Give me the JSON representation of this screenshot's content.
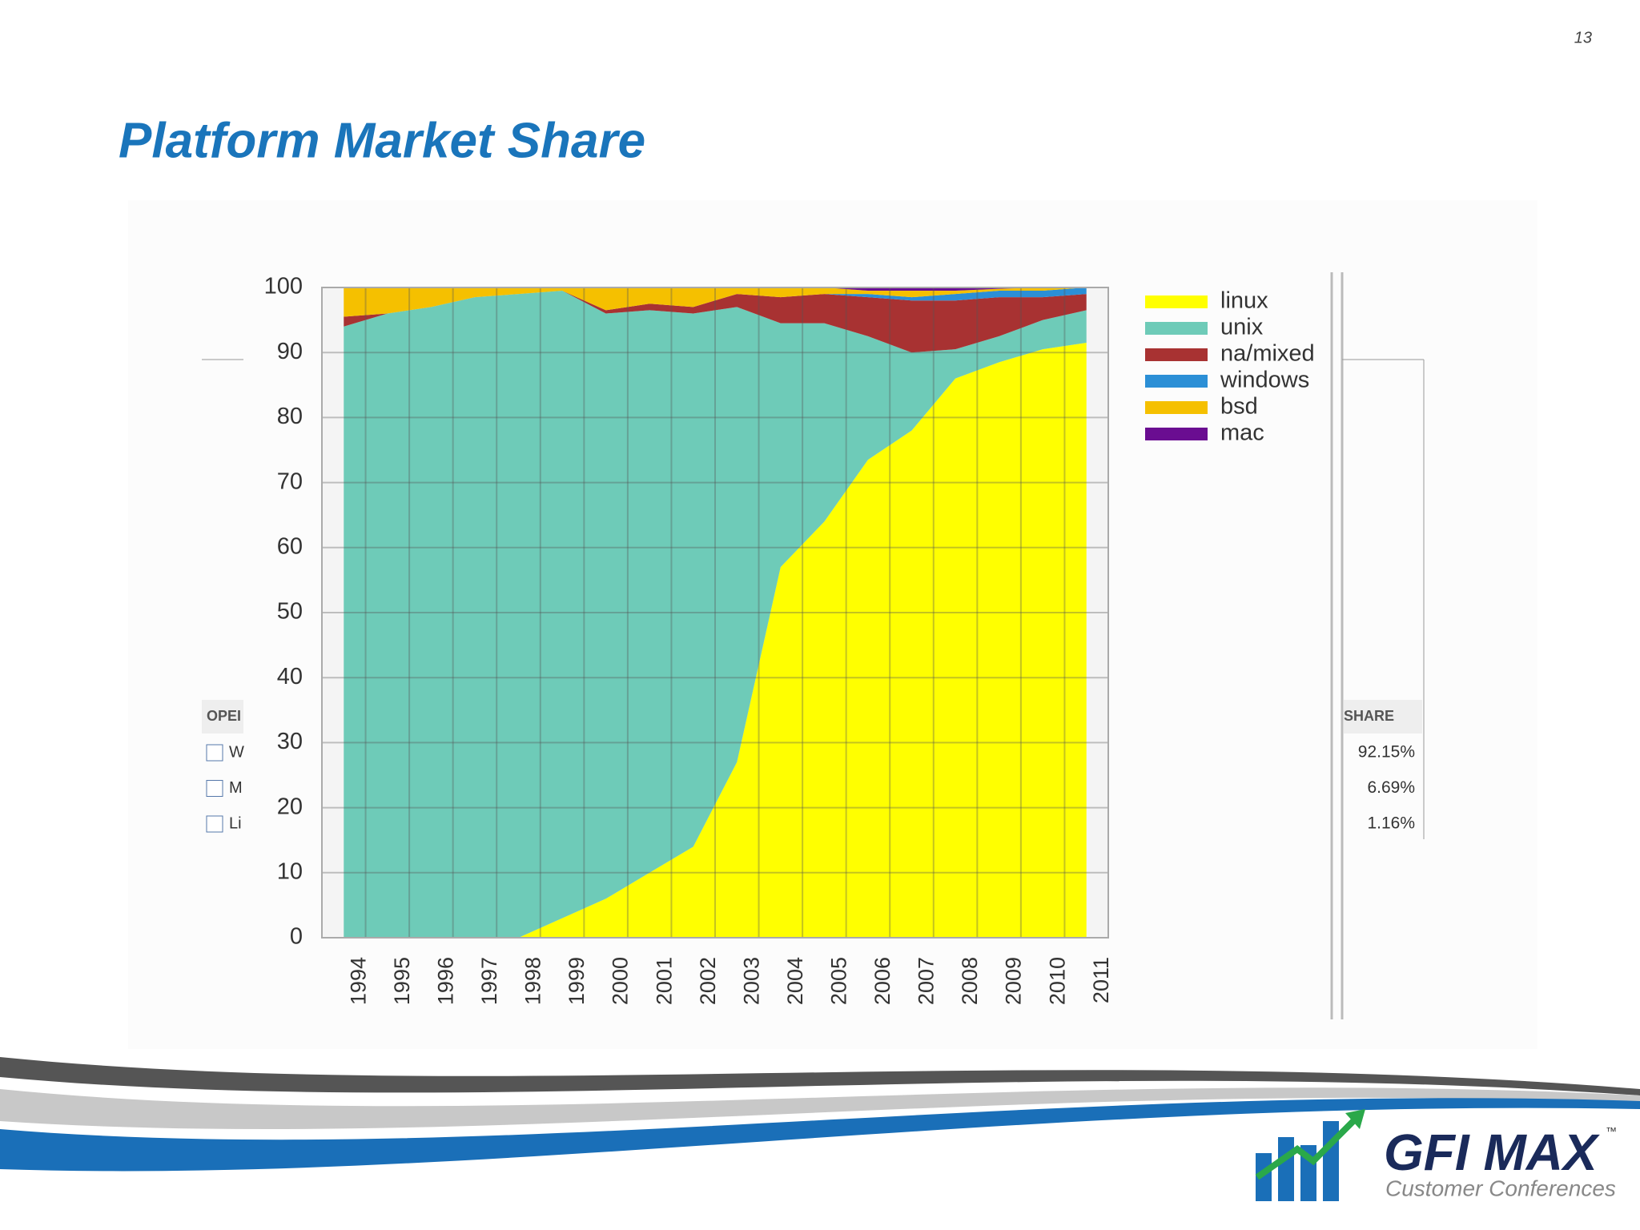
{
  "page_number": "13",
  "slide_title": "Platform Market Share",
  "bg_table": {
    "left_header": "OPEI",
    "left_rows": [
      "W",
      "M",
      "Li"
    ],
    "right_header": "SHARE",
    "right_rows": [
      "92.15%",
      "6.69%",
      "1.16%"
    ]
  },
  "logo": {
    "name": "GFI MAX",
    "tm": "™",
    "tagline": "Customer Conferences"
  },
  "chart_data": {
    "type": "stacked_area",
    "categories": [
      "1994",
      "1995",
      "1996",
      "1997",
      "1998",
      "1999",
      "2000",
      "2001",
      "2002",
      "2003",
      "2004",
      "2005",
      "2006",
      "2007",
      "2008",
      "2009",
      "2010",
      "2011"
    ],
    "series": [
      {
        "name": "linux",
        "color": "#ffff00",
        "values": [
          0,
          0,
          0,
          0,
          0,
          3,
          6,
          10,
          14,
          27,
          57,
          64,
          73.5,
          78,
          86,
          88.5,
          90.5,
          91.5
        ]
      },
      {
        "name": "unix",
        "color": "#6ecbb8",
        "values": [
          94,
          96,
          97,
          98.5,
          99,
          96.5,
          90,
          86.5,
          82,
          70,
          37.5,
          30.5,
          19,
          12,
          4.5,
          4,
          4.5,
          5
        ]
      },
      {
        "name": "na/mixed",
        "color": "#a83232",
        "values": [
          1.5,
          0,
          0,
          0,
          0,
          0,
          0.5,
          1,
          1,
          2,
          4,
          4.5,
          6,
          8,
          7.5,
          6,
          3.5,
          2.5
        ]
      },
      {
        "name": "windows",
        "color": "#2b8fd6",
        "values": [
          0,
          0,
          0,
          0,
          0,
          0,
          0,
          0,
          0,
          0,
          0,
          0,
          0.5,
          0.5,
          1,
          1,
          1,
          1
        ]
      },
      {
        "name": "bsd",
        "color": "#f5c000",
        "values": [
          4.5,
          4,
          3,
          1.5,
          1,
          0.5,
          3.5,
          2.5,
          3,
          1,
          1.5,
          1,
          0.5,
          1,
          0.5,
          0.3,
          0.5,
          0
        ]
      },
      {
        "name": "mac",
        "color": "#6a0d91",
        "values": [
          0,
          0,
          0,
          0,
          0,
          0,
          0,
          0,
          0,
          0,
          0,
          0,
          0.5,
          0.5,
          0.5,
          0.2,
          0,
          0
        ]
      }
    ],
    "ylim": [
      0,
      100
    ],
    "yticks": [
      0,
      10,
      20,
      30,
      40,
      50,
      60,
      70,
      80,
      90,
      100
    ],
    "grid": true
  }
}
